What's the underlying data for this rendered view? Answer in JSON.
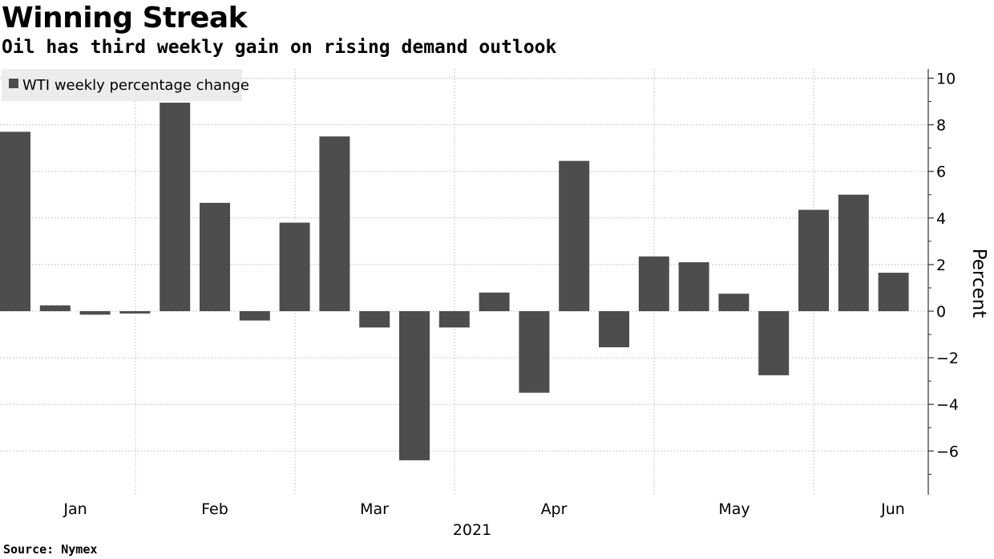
{
  "title": "Winning Streak",
  "subtitle": "Oil has third weekly gain on rising demand outlook",
  "source": "Source: Nymex",
  "chart_data": {
    "type": "bar",
    "title": "Winning Streak",
    "subtitle": "Oil has third weekly gain on rising demand outlook",
    "ylabel": "Percent",
    "xlabel": "2021",
    "ylim": [
      -8,
      10
    ],
    "yticks": [
      10,
      8,
      6,
      4,
      2,
      0,
      -2,
      -4,
      -6
    ],
    "grid": true,
    "legend_position": "top-left",
    "month_labels": [
      "Jan",
      "Feb",
      "Mar",
      "Apr",
      "May",
      "Jun"
    ],
    "series": [
      {
        "name": "WTI weekly percentage change",
        "color": "#4d4d4d",
        "values": [
          7.7,
          0.25,
          -0.15,
          -0.1,
          8.95,
          4.65,
          -0.4,
          3.8,
          7.5,
          -0.7,
          -6.4,
          -0.7,
          0.8,
          -3.5,
          6.45,
          -1.55,
          2.35,
          2.1,
          0.75,
          -2.75,
          4.35,
          5.0,
          1.65
        ]
      }
    ]
  }
}
